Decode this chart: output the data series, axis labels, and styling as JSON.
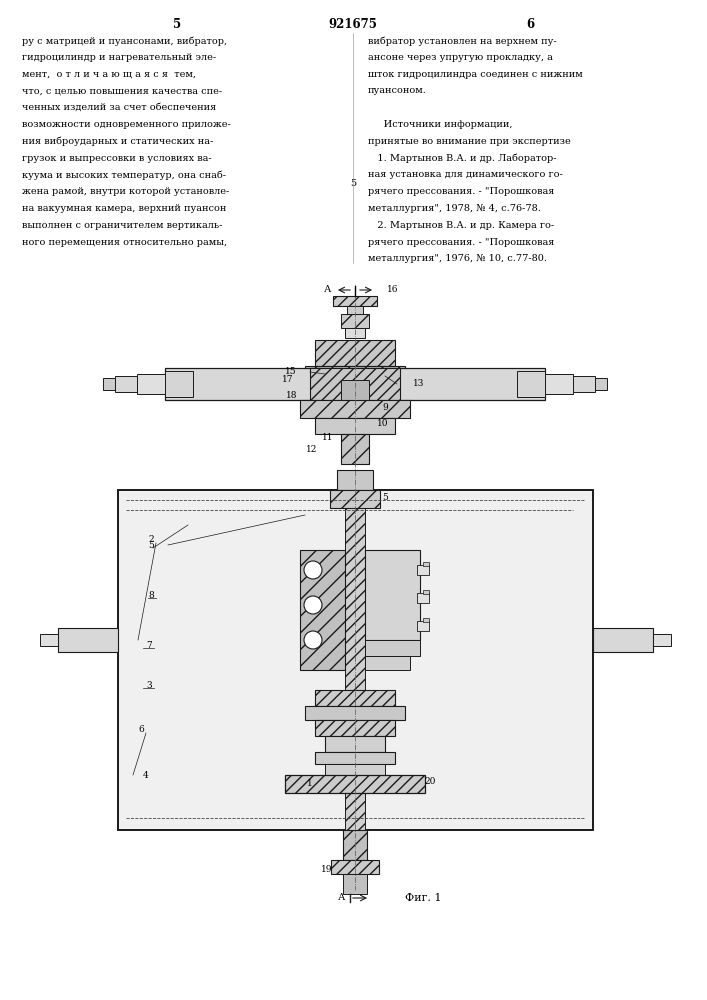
{
  "patent_number": "921675",
  "page_left": "5",
  "page_right": "6",
  "text_left": [
    "ру с матрицей и пуансонами, вибратор,",
    "гидроцилиндр и нагревательный эле-",
    "мент,  о т л и ч а ю щ а я с я  тем,",
    "что, с целью повышения качества спе-",
    "ченных изделий за счет обеспечения",
    "возможности одновременного приложе-",
    "ния виброударных и статических на-",
    "грузок и выпрессовки в условиях ва-",
    "куума и высоких температур, она снаб-",
    "жена рамой, внутри которой установле-",
    "на вакуумная камера, верхний пуансон",
    "выполнен с ограничителем вертикаль-",
    "ного перемещения относительно рамы,"
  ],
  "text_right": [
    "вибратор установлен на верхнем пу-",
    "ансоне через упругую прокладку, а",
    "шток гидроцилиндра соединен с нижним",
    "пуансоном.",
    "",
    "     Источники информации,",
    "принятые во внимание при экспертизе",
    "   1. Мартынов В.А. и др. Лаборатор-",
    "ная установка для динамического го-",
    "рячего прессования. - \"Порошковая",
    "металлургия\", 1978, № 4, с.76-78.",
    "   2. Мартынов В.А. и др. Камера го-",
    "рячего прессования. - \"Порошковая",
    "металлургия\", 1976, № 10, с.77-80."
  ],
  "line5_marker": "5",
  "fig_label": "Фиг. 1",
  "background_color": "#ffffff",
  "text_color": "#000000",
  "line_color": "#1a1a1a"
}
